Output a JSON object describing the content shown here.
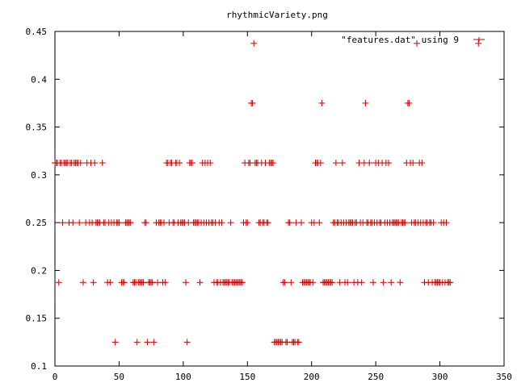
{
  "chart_data": {
    "type": "scatter",
    "title": "rhythmicVariety.png",
    "legend": {
      "label": "\"features.dat\" using 9",
      "position": "top-right"
    },
    "xlim": [
      0,
      350
    ],
    "ylim": [
      0.1,
      0.45
    ],
    "xticks": [
      0,
      50,
      100,
      150,
      200,
      250,
      300,
      350
    ],
    "yticks": [
      0.1,
      0.15,
      0.2,
      0.25,
      0.3,
      0.35,
      0.4,
      0.45
    ],
    "xtick_labels": [
      "0",
      "50",
      "100",
      "150",
      "200",
      "250",
      "300",
      "350"
    ],
    "ytick_labels": [
      "0.1",
      "0.15",
      "0.2",
      "0.25",
      "0.3",
      "0.35",
      "0.4",
      "0.45"
    ],
    "grid": false,
    "color": "#cc0000",
    "series": [
      {
        "points": [
          [
            0,
            0.3125
          ],
          [
            1,
            0.3125
          ],
          [
            2,
            0.3125
          ],
          [
            3,
            0.1875
          ],
          [
            4,
            0.3125
          ],
          [
            5,
            0.3125
          ],
          [
            6,
            0.25
          ],
          [
            7,
            0.3125
          ],
          [
            8,
            0.3125
          ],
          [
            9,
            0.3125
          ],
          [
            10,
            0.3125
          ],
          [
            11,
            0.25
          ],
          [
            12,
            0.3125
          ],
          [
            13,
            0.3125
          ],
          [
            14,
            0.25
          ],
          [
            15,
            0.3125
          ],
          [
            16,
            0.3125
          ],
          [
            17,
            0.3125
          ],
          [
            18,
            0.3125
          ],
          [
            19,
            0.25
          ],
          [
            20,
            0.3125
          ],
          [
            22,
            0.1875
          ],
          [
            24,
            0.25
          ],
          [
            25,
            0.3125
          ],
          [
            27,
            0.25
          ],
          [
            28,
            0.3125
          ],
          [
            29,
            0.25
          ],
          [
            30,
            0.1875
          ],
          [
            31,
            0.3125
          ],
          [
            32,
            0.25
          ],
          [
            33,
            0.25
          ],
          [
            34,
            0.25
          ],
          [
            35,
            0.25
          ],
          [
            37,
            0.3125
          ],
          [
            38,
            0.25
          ],
          [
            39,
            0.25
          ],
          [
            41,
            0.1875
          ],
          [
            42,
            0.25
          ],
          [
            43,
            0.1875
          ],
          [
            44,
            0.25
          ],
          [
            46,
            0.25
          ],
          [
            47,
            0.125
          ],
          [
            48,
            0.25
          ],
          [
            49,
            0.25
          ],
          [
            50,
            0.25
          ],
          [
            52,
            0.1875
          ],
          [
            53,
            0.1875
          ],
          [
            54,
            0.1875
          ],
          [
            55,
            0.25
          ],
          [
            56,
            0.25
          ],
          [
            57,
            0.25
          ],
          [
            58,
            0.25
          ],
          [
            59,
            0.25
          ],
          [
            61,
            0.1875
          ],
          [
            62,
            0.1875
          ],
          [
            63,
            0.1875
          ],
          [
            64,
            0.125
          ],
          [
            65,
            0.1875
          ],
          [
            66,
            0.1875
          ],
          [
            67,
            0.1875
          ],
          [
            68,
            0.1875
          ],
          [
            69,
            0.1875
          ],
          [
            70,
            0.25
          ],
          [
            71,
            0.25
          ],
          [
            72,
            0.125
          ],
          [
            73,
            0.1875
          ],
          [
            74,
            0.1875
          ],
          [
            75,
            0.1875
          ],
          [
            76,
            0.1875
          ],
          [
            77,
            0.125
          ],
          [
            79,
            0.25
          ],
          [
            80,
            0.1875
          ],
          [
            81,
            0.25
          ],
          [
            82,
            0.25
          ],
          [
            83,
            0.25
          ],
          [
            84,
            0.1875
          ],
          [
            85,
            0.25
          ],
          [
            86,
            0.1875
          ],
          [
            87,
            0.3125
          ],
          [
            88,
            0.3125
          ],
          [
            89,
            0.25
          ],
          [
            90,
            0.3125
          ],
          [
            91,
            0.3125
          ],
          [
            92,
            0.25
          ],
          [
            93,
            0.25
          ],
          [
            94,
            0.3125
          ],
          [
            95,
            0.3125
          ],
          [
            96,
            0.25
          ],
          [
            97,
            0.3125
          ],
          [
            98,
            0.25
          ],
          [
            99,
            0.25
          ],
          [
            100,
            0.25
          ],
          [
            101,
            0.25
          ],
          [
            102,
            0.1875
          ],
          [
            103,
            0.125
          ],
          [
            104,
            0.25
          ],
          [
            105,
            0.3125
          ],
          [
            106,
            0.3125
          ],
          [
            107,
            0.3125
          ],
          [
            108,
            0.25
          ],
          [
            109,
            0.25
          ],
          [
            110,
            0.25
          ],
          [
            111,
            0.25
          ],
          [
            112,
            0.25
          ],
          [
            113,
            0.1875
          ],
          [
            114,
            0.25
          ],
          [
            115,
            0.3125
          ],
          [
            116,
            0.25
          ],
          [
            117,
            0.3125
          ],
          [
            118,
            0.25
          ],
          [
            119,
            0.3125
          ],
          [
            120,
            0.25
          ],
          [
            121,
            0.3125
          ],
          [
            122,
            0.25
          ],
          [
            123,
            0.25
          ],
          [
            124,
            0.1875
          ],
          [
            125,
            0.25
          ],
          [
            126,
            0.1875
          ],
          [
            127,
            0.1875
          ],
          [
            128,
            0.25
          ],
          [
            129,
            0.1875
          ],
          [
            130,
            0.25
          ],
          [
            131,
            0.1875
          ],
          [
            132,
            0.1875
          ],
          [
            133,
            0.1875
          ],
          [
            134,
            0.1875
          ],
          [
            135,
            0.1875
          ],
          [
            136,
            0.1875
          ],
          [
            137,
            0.25
          ],
          [
            138,
            0.1875
          ],
          [
            139,
            0.1875
          ],
          [
            140,
            0.1875
          ],
          [
            141,
            0.1875
          ],
          [
            142,
            0.1875
          ],
          [
            143,
            0.1875
          ],
          [
            144,
            0.1875
          ],
          [
            145,
            0.1875
          ],
          [
            146,
            0.1875
          ],
          [
            147,
            0.25
          ],
          [
            148,
            0.3125
          ],
          [
            149,
            0.25
          ],
          [
            150,
            0.25
          ],
          [
            151,
            0.3125
          ],
          [
            152,
            0.3125
          ],
          [
            153,
            0.375
          ],
          [
            154,
            0.375
          ],
          [
            155,
            0.4375
          ],
          [
            156,
            0.3125
          ],
          [
            157,
            0.3125
          ],
          [
            158,
            0.3125
          ],
          [
            159,
            0.25
          ],
          [
            160,
            0.25
          ],
          [
            161,
            0.3125
          ],
          [
            162,
            0.25
          ],
          [
            163,
            0.25
          ],
          [
            164,
            0.3125
          ],
          [
            165,
            0.25
          ],
          [
            166,
            0.25
          ],
          [
            167,
            0.3125
          ],
          [
            168,
            0.3125
          ],
          [
            169,
            0.3125
          ],
          [
            170,
            0.3125
          ],
          [
            171,
            0.125
          ],
          [
            172,
            0.125
          ],
          [
            173,
            0.125
          ],
          [
            174,
            0.125
          ],
          [
            175,
            0.125
          ],
          [
            176,
            0.125
          ],
          [
            177,
            0.125
          ],
          [
            178,
            0.1875
          ],
          [
            179,
            0.1875
          ],
          [
            180,
            0.125
          ],
          [
            181,
            0.125
          ],
          [
            182,
            0.25
          ],
          [
            183,
            0.25
          ],
          [
            184,
            0.1875
          ],
          [
            185,
            0.125
          ],
          [
            186,
            0.125
          ],
          [
            187,
            0.125
          ],
          [
            188,
            0.25
          ],
          [
            189,
            0.125
          ],
          [
            190,
            0.125
          ],
          [
            192,
            0.25
          ],
          [
            193,
            0.1875
          ],
          [
            194,
            0.1875
          ],
          [
            195,
            0.1875
          ],
          [
            196,
            0.1875
          ],
          [
            197,
            0.1875
          ],
          [
            198,
            0.1875
          ],
          [
            199,
            0.1875
          ],
          [
            200,
            0.25
          ],
          [
            201,
            0.1875
          ],
          [
            202,
            0.25
          ],
          [
            203,
            0.3125
          ],
          [
            204,
            0.3125
          ],
          [
            205,
            0.3125
          ],
          [
            206,
            0.25
          ],
          [
            207,
            0.3125
          ],
          [
            208,
            0.375
          ],
          [
            209,
            0.1875
          ],
          [
            210,
            0.1875
          ],
          [
            211,
            0.1875
          ],
          [
            212,
            0.1875
          ],
          [
            213,
            0.1875
          ],
          [
            214,
            0.1875
          ],
          [
            215,
            0.1875
          ],
          [
            216,
            0.1875
          ],
          [
            217,
            0.25
          ],
          [
            218,
            0.25
          ],
          [
            219,
            0.3125
          ],
          [
            220,
            0.25
          ],
          [
            221,
            0.25
          ],
          [
            222,
            0.1875
          ],
          [
            223,
            0.25
          ],
          [
            224,
            0.3125
          ],
          [
            225,
            0.25
          ],
          [
            226,
            0.1875
          ],
          [
            227,
            0.25
          ],
          [
            228,
            0.1875
          ],
          [
            229,
            0.25
          ],
          [
            230,
            0.25
          ],
          [
            231,
            0.25
          ],
          [
            232,
            0.25
          ],
          [
            233,
            0.1875
          ],
          [
            234,
            0.25
          ],
          [
            235,
            0.25
          ],
          [
            236,
            0.1875
          ],
          [
            237,
            0.3125
          ],
          [
            238,
            0.25
          ],
          [
            239,
            0.1875
          ],
          [
            240,
            0.25
          ],
          [
            241,
            0.3125
          ],
          [
            242,
            0.375
          ],
          [
            243,
            0.25
          ],
          [
            244,
            0.25
          ],
          [
            245,
            0.3125
          ],
          [
            246,
            0.25
          ],
          [
            247,
            0.25
          ],
          [
            248,
            0.1875
          ],
          [
            249,
            0.25
          ],
          [
            250,
            0.3125
          ],
          [
            251,
            0.25
          ],
          [
            252,
            0.3125
          ],
          [
            253,
            0.25
          ],
          [
            254,
            0.25
          ],
          [
            255,
            0.3125
          ],
          [
            256,
            0.1875
          ],
          [
            257,
            0.25
          ],
          [
            258,
            0.3125
          ],
          [
            259,
            0.25
          ],
          [
            260,
            0.3125
          ],
          [
            261,
            0.25
          ],
          [
            262,
            0.1875
          ],
          [
            263,
            0.25
          ],
          [
            264,
            0.25
          ],
          [
            265,
            0.25
          ],
          [
            266,
            0.25
          ],
          [
            267,
            0.25
          ],
          [
            268,
            0.25
          ],
          [
            269,
            0.1875
          ],
          [
            270,
            0.25
          ],
          [
            271,
            0.25
          ],
          [
            272,
            0.25
          ],
          [
            273,
            0.25
          ],
          [
            274,
            0.3125
          ],
          [
            275,
            0.375
          ],
          [
            276,
            0.375
          ],
          [
            277,
            0.3125
          ],
          [
            278,
            0.25
          ],
          [
            279,
            0.3125
          ],
          [
            280,
            0.25
          ],
          [
            281,
            0.25
          ],
          [
            282,
            0.4375
          ],
          [
            283,
            0.25
          ],
          [
            284,
            0.3125
          ],
          [
            285,
            0.25
          ],
          [
            286,
            0.3125
          ],
          [
            287,
            0.25
          ],
          [
            288,
            0.1875
          ],
          [
            289,
            0.25
          ],
          [
            290,
            0.25
          ],
          [
            291,
            0.1875
          ],
          [
            292,
            0.25
          ],
          [
            293,
            0.25
          ],
          [
            294,
            0.1875
          ],
          [
            295,
            0.25
          ],
          [
            296,
            0.1875
          ],
          [
            297,
            0.1875
          ],
          [
            298,
            0.1875
          ],
          [
            299,
            0.1875
          ],
          [
            300,
            0.1875
          ],
          [
            301,
            0.25
          ],
          [
            302,
            0.1875
          ],
          [
            303,
            0.25
          ],
          [
            304,
            0.1875
          ],
          [
            305,
            0.25
          ],
          [
            306,
            0.1875
          ],
          [
            307,
            0.1875
          ],
          [
            308,
            0.1875
          ],
          [
            330,
            0.4375
          ]
        ]
      }
    ]
  }
}
